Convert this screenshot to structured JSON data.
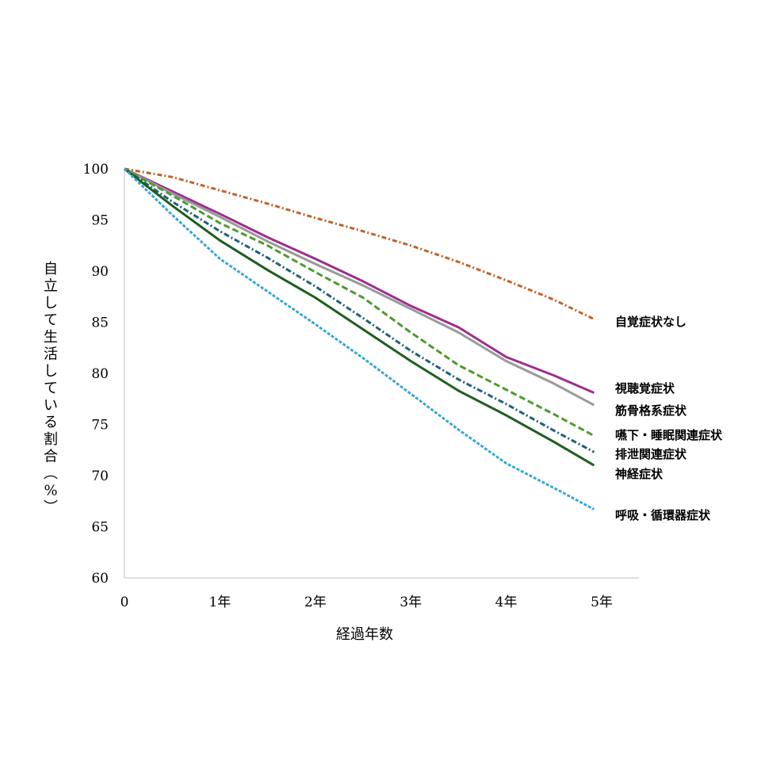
{
  "chart_data": {
    "type": "line",
    "title": "",
    "xlabel": "経過年数",
    "ylabel": "自立して生活している割合（%）",
    "xlim": [
      0,
      5.4
    ],
    "ylim": [
      60,
      100
    ],
    "x_ticks": [
      0,
      1,
      2,
      3,
      4,
      5
    ],
    "x_tick_labels": [
      "0",
      "1年",
      "2年",
      "3年",
      "4年",
      "5年"
    ],
    "y_ticks": [
      60,
      65,
      70,
      75,
      80,
      85,
      90,
      95,
      100
    ],
    "y_tick_labels": [
      "60",
      "65",
      "70",
      "75",
      "80",
      "85",
      "90",
      "95",
      "100"
    ],
    "grid": false,
    "legend": "inline labels at right end of each line",
    "series": [
      {
        "name": "自覚症状なし",
        "color": "#C0622A",
        "dash": "6,3,2,3",
        "x": [
          0,
          0.5,
          1,
          1.5,
          2,
          2.5,
          3,
          3.5,
          4,
          4.5,
          4.92
        ],
        "y": [
          100,
          99.2,
          97.9,
          96.6,
          95.2,
          93.9,
          92.5,
          90.9,
          89.1,
          87.2,
          85.3
        ]
      },
      {
        "name": "視聴覚症状",
        "color": "#9B2F8F",
        "dash": "",
        "x": [
          0,
          0.5,
          1,
          1.5,
          2,
          2.5,
          3,
          3.5,
          4,
          4.5,
          4.92
        ],
        "y": [
          100,
          97.8,
          95.6,
          93.3,
          91.2,
          89.0,
          86.6,
          84.5,
          81.6,
          79.8,
          78.1
        ]
      },
      {
        "name": "筋骨格系症状",
        "color": "#9A9A9A",
        "dash": "",
        "x": [
          0,
          0.5,
          1,
          1.5,
          2,
          2.5,
          3,
          3.5,
          4,
          4.5,
          4.92
        ],
        "y": [
          100,
          97.6,
          95.3,
          92.9,
          90.7,
          88.6,
          86.3,
          84.0,
          81.2,
          79.0,
          76.9
        ]
      },
      {
        "name": "嚥下・睡眠関連症状",
        "color": "#4E9A2E",
        "dash": "8,4",
        "x": [
          0,
          0.5,
          1,
          1.5,
          2,
          2.5,
          3,
          3.5,
          4,
          4.5,
          4.92
        ],
        "y": [
          100,
          97.4,
          94.7,
          92.5,
          89.9,
          87.4,
          84.0,
          80.8,
          78.4,
          76.0,
          73.9
        ]
      },
      {
        "name": "排泄関連症状",
        "color": "#1F5F7A",
        "dash": "7,3,2,3",
        "x": [
          0,
          0.5,
          1,
          1.5,
          2,
          2.5,
          3,
          3.5,
          4,
          4.5,
          4.92
        ],
        "y": [
          100,
          96.8,
          93.9,
          91.3,
          88.5,
          85.4,
          82.2,
          79.4,
          77.0,
          74.4,
          72.3
        ]
      },
      {
        "name": "神経症状",
        "color": "#1E5E1E",
        "dash": "",
        "x": [
          0,
          0.5,
          1,
          1.5,
          2,
          2.5,
          3,
          3.5,
          4,
          4.5,
          4.92
        ],
        "y": [
          100,
          96.4,
          93.0,
          90.1,
          87.4,
          84.3,
          81.2,
          78.3,
          75.9,
          73.3,
          71.0
        ]
      },
      {
        "name": "呼吸・循環器症状",
        "color": "#3AA7D6",
        "dash": "4,2",
        "x": [
          0,
          0.5,
          1,
          1.5,
          2,
          2.5,
          3,
          3.5,
          4,
          4.5,
          4.92
        ],
        "y": [
          100,
          95.5,
          91.2,
          88.0,
          84.8,
          81.5,
          78.0,
          74.5,
          71.2,
          68.8,
          66.7
        ]
      }
    ]
  }
}
